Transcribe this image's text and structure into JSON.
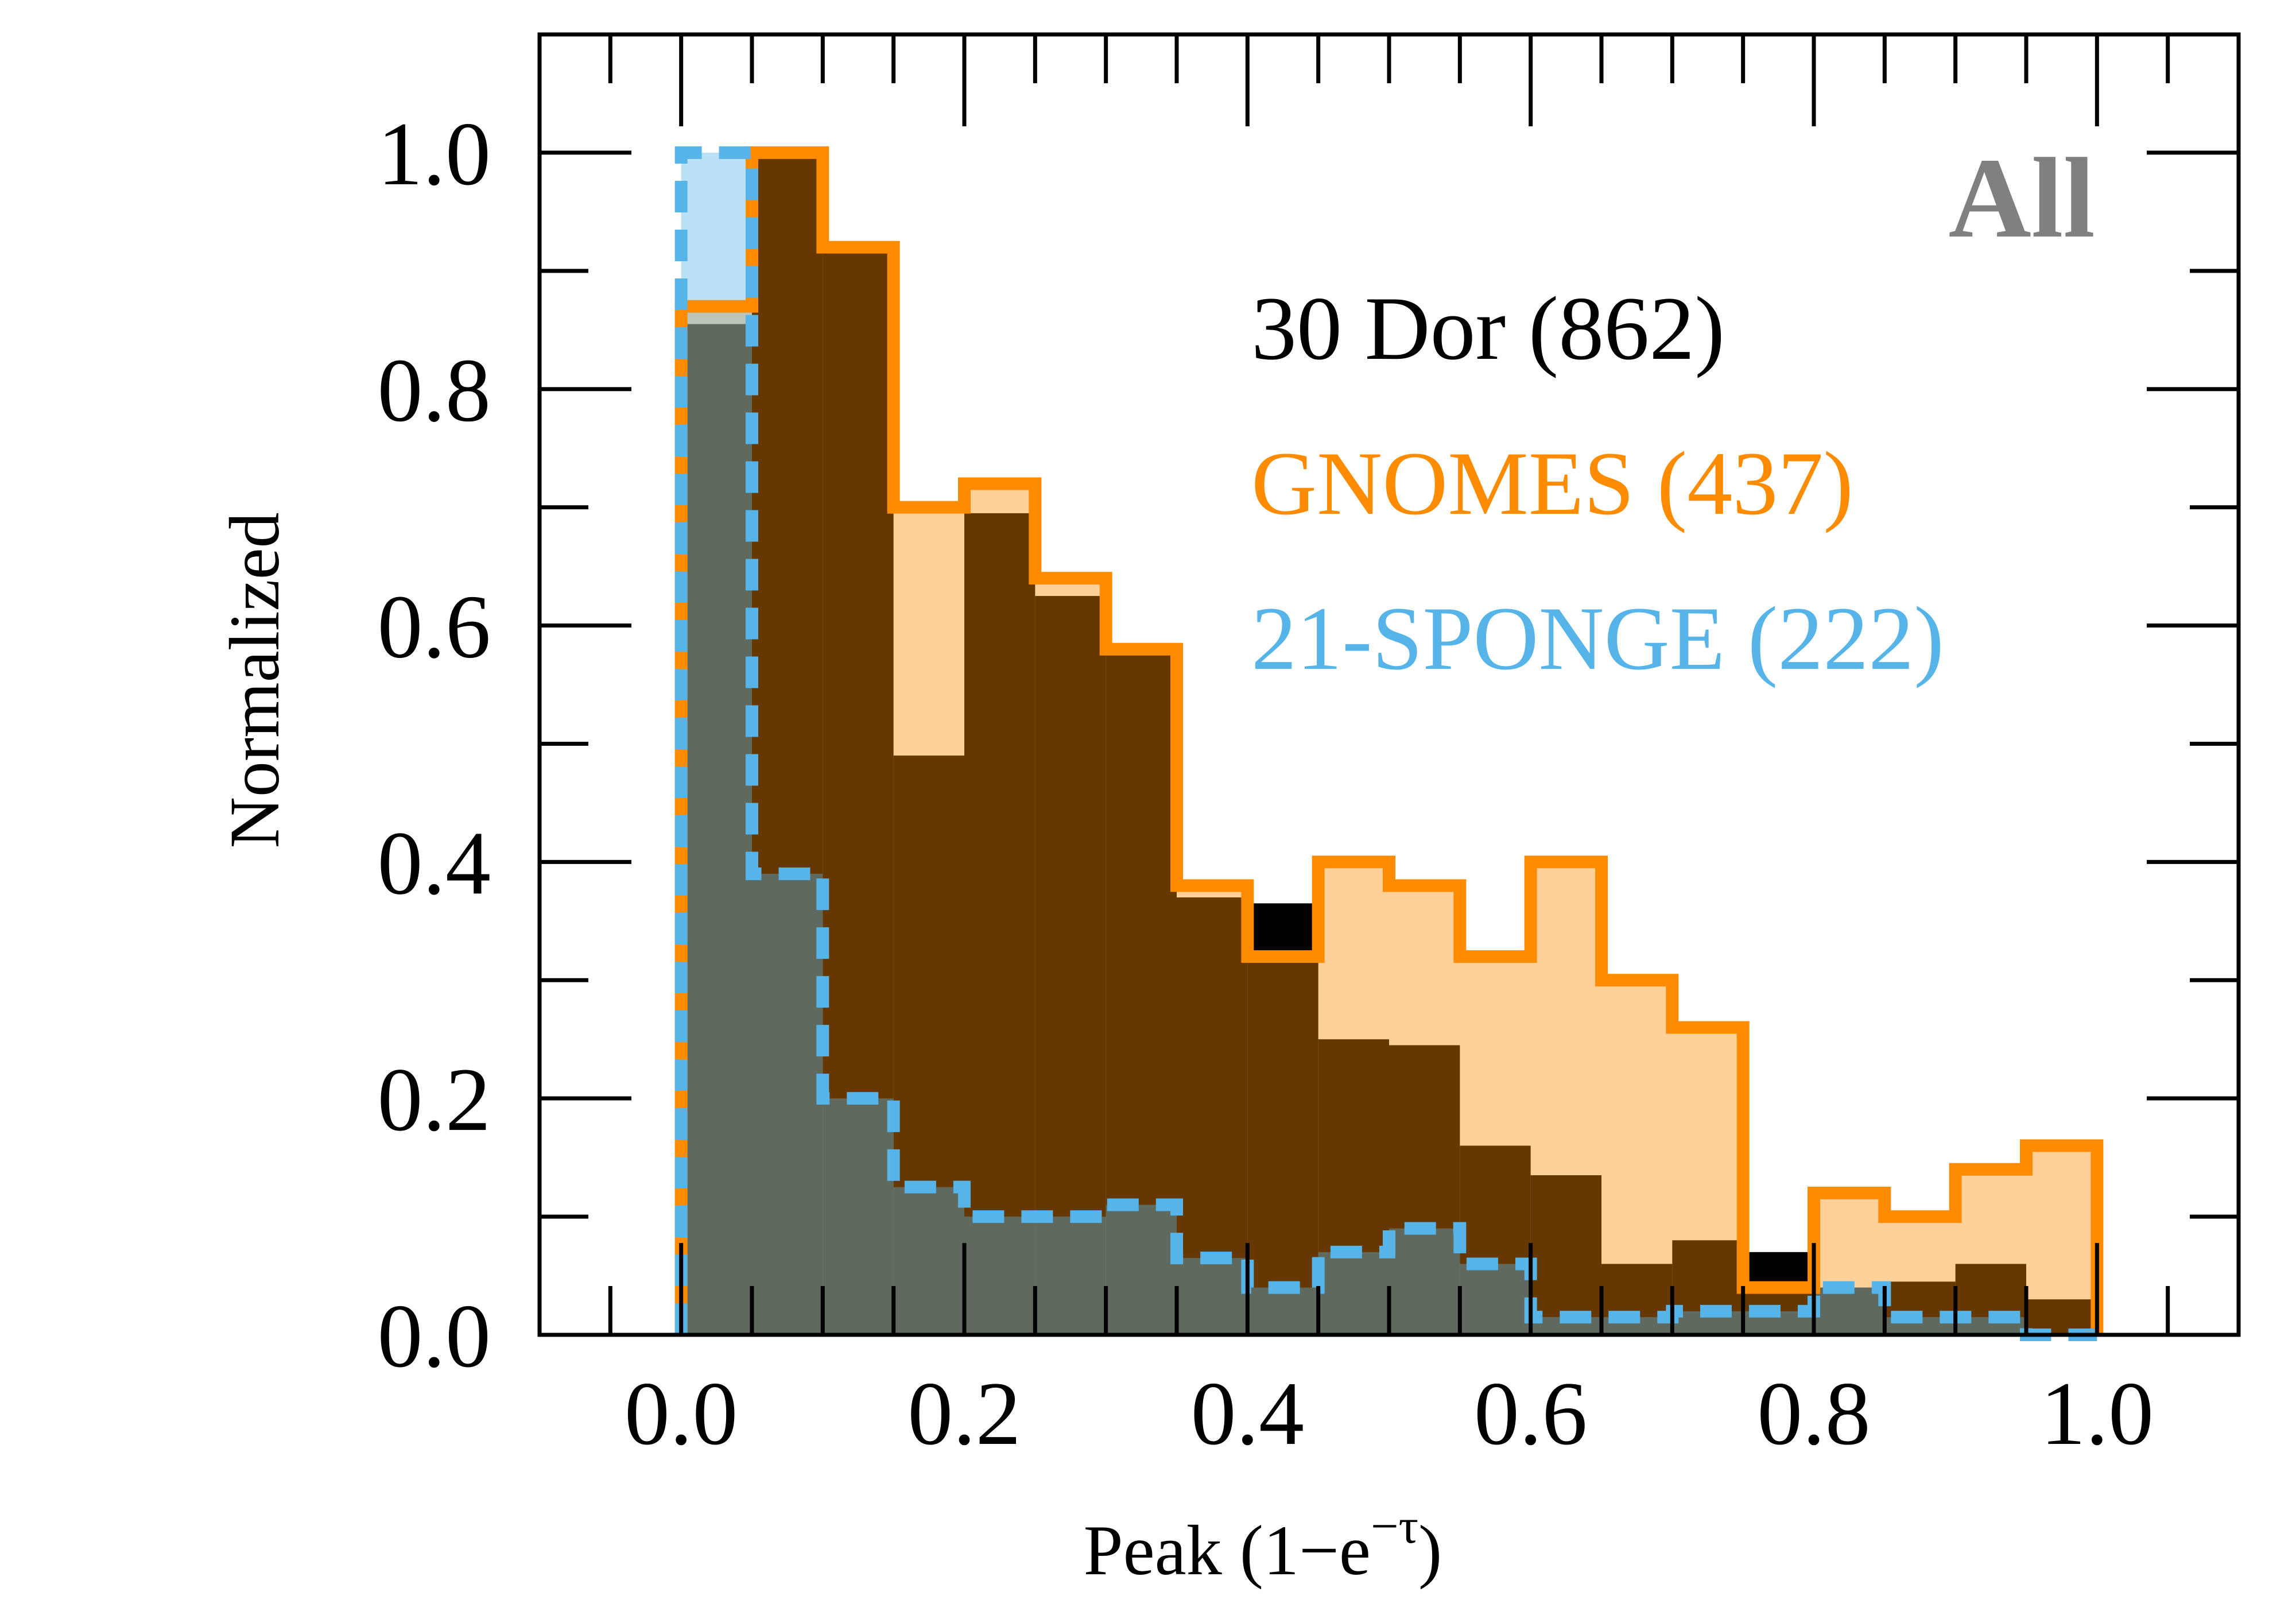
{
  "chart_data": {
    "type": "bar",
    "title": "",
    "panel_label": "All",
    "xlabel_main": "Peak (1−e",
    "xlabel_sup": "−τ",
    "xlabel_end": ")",
    "ylabel": "Normalized",
    "xlim": [
      -0.1,
      1.1
    ],
    "ylim": [
      0.0,
      1.1
    ],
    "xticks": [
      0.0,
      0.2,
      0.4,
      0.6,
      0.8,
      1.0
    ],
    "xtick_labels": [
      "0.0",
      "0.2",
      "0.4",
      "0.6",
      "0.8",
      "1.0"
    ],
    "yticks": [
      0.0,
      0.2,
      0.4,
      0.6,
      0.8,
      1.0
    ],
    "ytick_labels": [
      "0.0",
      "0.2",
      "0.4",
      "0.6",
      "0.8",
      "1.0"
    ],
    "bin_edges": [
      0.0,
      0.05,
      0.1,
      0.15,
      0.2,
      0.25,
      0.3,
      0.35,
      0.4,
      0.45,
      0.5,
      0.55,
      0.6,
      0.65,
      0.7,
      0.75,
      0.8,
      0.85,
      0.9,
      0.95,
      1.0
    ],
    "series": [
      {
        "name": "30 Dor",
        "legend": "30 Dor (862)",
        "color": "#000000",
        "values": [
          0.855,
          0.995,
          0.915,
          0.49,
          0.695,
          0.625,
          0.575,
          0.37,
          0.365,
          0.25,
          0.245,
          0.16,
          0.135,
          0.06,
          0.08,
          0.07,
          0.04,
          0.045,
          0.06,
          0.03
        ]
      },
      {
        "name": "GNOMES",
        "legend": "GNOMES (437)",
        "color": "#ff8c00",
        "fill": "#ffd197",
        "values": [
          0.87,
          1.0,
          0.92,
          0.7,
          0.72,
          0.64,
          0.58,
          0.38,
          0.32,
          0.4,
          0.38,
          0.32,
          0.4,
          0.3,
          0.26,
          0.04,
          0.12,
          0.1,
          0.14,
          0.16
        ]
      },
      {
        "name": "21-SPONGE",
        "legend": "21-SPONGE (222)",
        "color": "#56b4e9",
        "fill": "#bfe2f7",
        "values": [
          1.0,
          0.39,
          0.2,
          0.125,
          0.1,
          0.1,
          0.11,
          0.065,
          0.04,
          0.07,
          0.09,
          0.06,
          0.015,
          0.015,
          0.02,
          0.02,
          0.04,
          0.015,
          0.015,
          0.0
        ]
      }
    ],
    "legend_placement": "top-right"
  }
}
